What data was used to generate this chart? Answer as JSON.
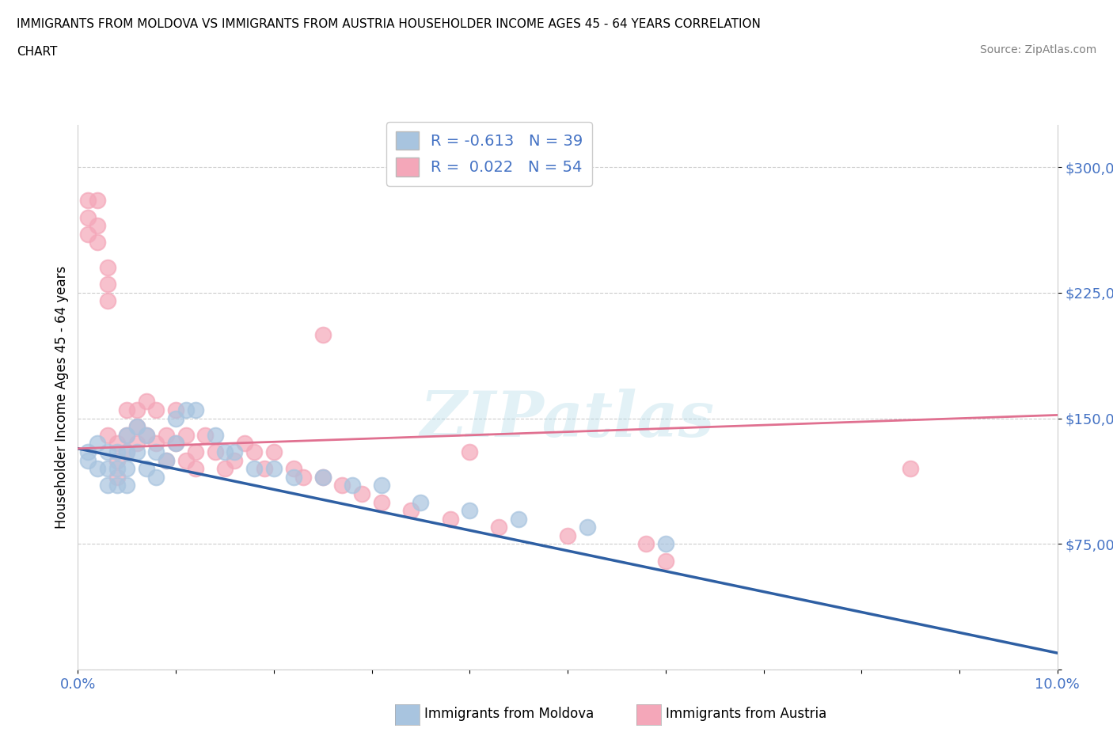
{
  "title_line1": "IMMIGRANTS FROM MOLDOVA VS IMMIGRANTS FROM AUSTRIA HOUSEHOLDER INCOME AGES 45 - 64 YEARS CORRELATION",
  "title_line2": "CHART",
  "source_text": "Source: ZipAtlas.com",
  "ylabel": "Householder Income Ages 45 - 64 years",
  "xlim": [
    0.0,
    0.1
  ],
  "ylim": [
    0,
    325000
  ],
  "yticks": [
    0,
    75000,
    150000,
    225000,
    300000
  ],
  "ytick_labels": [
    "",
    "$75,000",
    "$150,000",
    "$225,000",
    "$300,000"
  ],
  "xtick_vals": [
    0.0,
    0.01,
    0.02,
    0.03,
    0.04,
    0.05,
    0.06,
    0.07,
    0.08,
    0.09,
    0.1
  ],
  "xtick_labels": [
    "0.0%",
    "",
    "",
    "",
    "",
    "",
    "",
    "",
    "",
    "",
    "10.0%"
  ],
  "watermark": "ZIPatlas",
  "legend_moldova": "R = -0.613   N = 39",
  "legend_austria": "R =  0.022   N = 54",
  "moldova_color": "#a8c4df",
  "austria_color": "#f4a7b9",
  "moldova_line_color": "#2e5fa3",
  "austria_line_color": "#e07090",
  "moldova_scatter_x": [
    0.001,
    0.001,
    0.002,
    0.002,
    0.003,
    0.003,
    0.003,
    0.004,
    0.004,
    0.004,
    0.005,
    0.005,
    0.005,
    0.005,
    0.006,
    0.006,
    0.007,
    0.007,
    0.008,
    0.008,
    0.009,
    0.01,
    0.01,
    0.011,
    0.012,
    0.014,
    0.015,
    0.016,
    0.018,
    0.02,
    0.022,
    0.025,
    0.028,
    0.031,
    0.035,
    0.04,
    0.045,
    0.052,
    0.06
  ],
  "moldova_scatter_y": [
    130000,
    125000,
    135000,
    120000,
    130000,
    120000,
    110000,
    130000,
    120000,
    110000,
    140000,
    130000,
    120000,
    110000,
    145000,
    130000,
    140000,
    120000,
    130000,
    115000,
    125000,
    150000,
    135000,
    155000,
    155000,
    140000,
    130000,
    130000,
    120000,
    120000,
    115000,
    115000,
    110000,
    110000,
    100000,
    95000,
    90000,
    85000,
    75000
  ],
  "austria_scatter_x": [
    0.001,
    0.001,
    0.001,
    0.002,
    0.002,
    0.002,
    0.003,
    0.003,
    0.003,
    0.003,
    0.004,
    0.004,
    0.004,
    0.005,
    0.005,
    0.005,
    0.006,
    0.006,
    0.006,
    0.007,
    0.007,
    0.008,
    0.008,
    0.009,
    0.009,
    0.01,
    0.01,
    0.011,
    0.011,
    0.012,
    0.012,
    0.013,
    0.014,
    0.015,
    0.016,
    0.017,
    0.018,
    0.019,
    0.02,
    0.022,
    0.023,
    0.025,
    0.027,
    0.029,
    0.031,
    0.034,
    0.038,
    0.043,
    0.05,
    0.058,
    0.025,
    0.04,
    0.06,
    0.085
  ],
  "austria_scatter_y": [
    280000,
    270000,
    260000,
    280000,
    265000,
    255000,
    240000,
    230000,
    220000,
    140000,
    135000,
    125000,
    115000,
    155000,
    140000,
    130000,
    155000,
    145000,
    135000,
    160000,
    140000,
    155000,
    135000,
    140000,
    125000,
    155000,
    135000,
    140000,
    125000,
    130000,
    120000,
    140000,
    130000,
    120000,
    125000,
    135000,
    130000,
    120000,
    130000,
    120000,
    115000,
    115000,
    110000,
    105000,
    100000,
    95000,
    90000,
    85000,
    80000,
    75000,
    200000,
    130000,
    65000,
    120000
  ],
  "moldova_trend_x": [
    0.0,
    0.1
  ],
  "moldova_trend_y": [
    132000,
    10000
  ],
  "austria_trend_x": [
    0.0,
    0.1
  ],
  "austria_trend_y": [
    132000,
    152000
  ],
  "background_color": "#ffffff",
  "grid_color": "#cccccc"
}
